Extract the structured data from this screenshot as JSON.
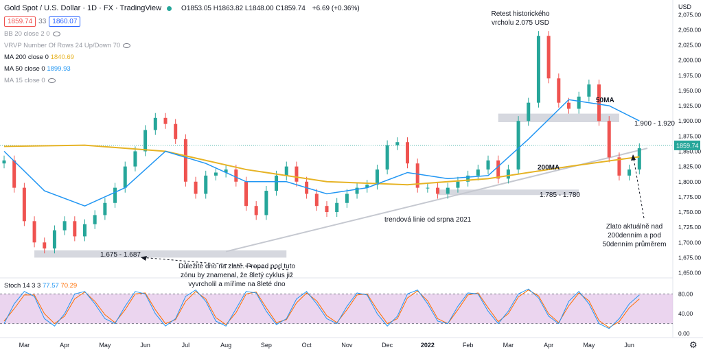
{
  "header": {
    "symbol_title": "Gold Spot / U.S. Dollar · 1D · FX · TradingView",
    "ohlc": "O1853.05 H1863.82 L1848.00 C1859.74",
    "change": "+6.69 (+0.36%)",
    "sell_price": "1859.74",
    "spread": "33",
    "buy_price": "1860.07",
    "currency": "USD"
  },
  "indicators": [
    {
      "label": "BB 20 close 2 0",
      "value": "",
      "active": false
    },
    {
      "label": "VRVP Number Of Rows 24 Up/Down 70",
      "value": "",
      "active": false
    },
    {
      "label": "MA 200 close 0",
      "value": "1840.69",
      "active": true,
      "color": "#e6b325"
    },
    {
      "label": "MA 50 close 0",
      "value": "1899.93",
      "active": true,
      "color": "#2196f3"
    },
    {
      "label": "MA 15 close 0",
      "value": "",
      "active": false
    }
  ],
  "stoch": {
    "label": "Stoch 14 3 3",
    "k": "77.57",
    "d": "70.29"
  },
  "annotations": {
    "retest": "Retest historického vrcholu 2.075 USD",
    "ma50": "50MA",
    "ma200": "200MA",
    "zone_1900": "1.900 - 1.920",
    "zone_1785": "1.785 - 1.780",
    "zone_1675": "1.675 - 1.687",
    "trendline": "trendová linie od srpna 2021",
    "bottom_note": "Důležité dno na zlatě. Propad pod tuto zónu by znamenal, že 8letý cyklus již vyvrcholil a míříme na 8leté dno",
    "right_note": "Zlato aktuálně nad 200denním a pod 50denním průměrem"
  },
  "colors": {
    "up": "#26a69a",
    "down": "#ef5350",
    "ma50": "#2196f3",
    "ma200": "#e6b325",
    "stoch_k": "#2196f3",
    "stoch_d": "#ff6d00",
    "stoch_band": "#e1bee7"
  },
  "chart_data": {
    "type": "line",
    "title": "Gold Spot / U.S. Dollar · 1D",
    "y_axis": {
      "ticks": [
        1650,
        1675,
        1700,
        1725,
        1750,
        1775,
        1800,
        1825,
        1850,
        1875,
        1900,
        1925,
        1950,
        1975,
        2000,
        2025,
        2050,
        2075
      ],
      "ylim": [
        1645,
        2090
      ],
      "last_price_label": "1859.74"
    },
    "x_axis": {
      "ticks": [
        "Mar",
        "Apr",
        "May",
        "Jun",
        "Jul",
        "Aug",
        "Sep",
        "Oct",
        "Nov",
        "Dec",
        "2022",
        "Feb",
        "Mar",
        "Apr",
        "May",
        "Jun"
      ],
      "xlim": [
        0,
        64
      ]
    },
    "series": [
      {
        "name": "Close",
        "x": [
          0,
          1,
          2,
          3,
          4,
          5,
          6,
          7,
          8,
          9,
          10,
          11,
          12,
          13,
          14,
          15,
          16,
          17,
          18,
          19,
          20,
          21,
          22,
          23,
          24,
          25,
          26,
          27,
          28,
          29,
          30,
          31,
          32,
          33,
          34,
          35,
          36,
          37,
          38,
          39,
          40,
          41,
          42,
          43,
          44,
          45,
          46,
          47,
          48,
          49,
          50,
          51,
          52,
          53,
          54,
          55,
          56,
          57,
          58,
          59,
          60,
          61,
          62,
          63
        ],
        "y": [
          1835,
          1790,
          1735,
          1700,
          1690,
          1720,
          1735,
          1710,
          1730,
          1745,
          1765,
          1790,
          1825,
          1850,
          1885,
          1905,
          1895,
          1870,
          1800,
          1780,
          1810,
          1815,
          1820,
          1800,
          1760,
          1745,
          1785,
          1810,
          1825,
          1800,
          1780,
          1760,
          1750,
          1765,
          1780,
          1790,
          1795,
          1820,
          1860,
          1865,
          1830,
          1790,
          1790,
          1780,
          1790,
          1800,
          1810,
          1820,
          1835,
          1805,
          1820,
          1900,
          1930,
          2040,
          1970,
          1930,
          1920,
          1940,
          1960,
          1900,
          1840,
          1810,
          1820,
          1855
        ]
      },
      {
        "name": "MA 50",
        "x": [
          0,
          4,
          8,
          12,
          16,
          20,
          24,
          28,
          32,
          36,
          40,
          44,
          48,
          52,
          56,
          60,
          63
        ],
        "y": [
          1850,
          1785,
          1760,
          1790,
          1850,
          1830,
          1800,
          1800,
          1780,
          1790,
          1815,
          1805,
          1810,
          1870,
          1935,
          1925,
          1900
        ]
      },
      {
        "name": "MA 200",
        "x": [
          0,
          8,
          16,
          24,
          32,
          40,
          48,
          56,
          63
        ],
        "y": [
          1858,
          1860,
          1850,
          1820,
          1800,
          1795,
          1805,
          1825,
          1841
        ]
      }
    ],
    "stoch_ticks": [
      "0.00",
      "40.00",
      "80.00"
    ],
    "stoch_levels": [
      20,
      80
    ],
    "stoch_k": [
      20,
      60,
      85,
      75,
      30,
      15,
      40,
      80,
      85,
      60,
      30,
      20,
      55,
      85,
      80,
      40,
      15,
      30,
      75,
      88,
      65,
      25,
      15,
      50,
      85,
      82,
      45,
      18,
      30,
      70,
      85,
      60,
      30,
      20,
      55,
      82,
      78,
      40,
      15,
      35,
      80,
      88,
      60,
      25,
      20,
      55,
      82,
      80,
      45,
      20,
      45,
      80,
      90,
      72,
      35,
      20,
      65,
      85,
      60,
      20,
      10,
      30,
      60,
      78
    ],
    "stoch_d": [
      25,
      50,
      78,
      78,
      40,
      20,
      35,
      70,
      84,
      65,
      38,
      22,
      48,
      80,
      82,
      48,
      20,
      28,
      65,
      85,
      70,
      32,
      18,
      42,
      80,
      84,
      52,
      22,
      28,
      62,
      82,
      66,
      36,
      22,
      48,
      78,
      80,
      48,
      20,
      30,
      72,
      86,
      66,
      30,
      20,
      48,
      78,
      82,
      52,
      24,
      40,
      74,
      88,
      76,
      40,
      22,
      56,
      82,
      66,
      26,
      12,
      24,
      52,
      70
    ]
  }
}
